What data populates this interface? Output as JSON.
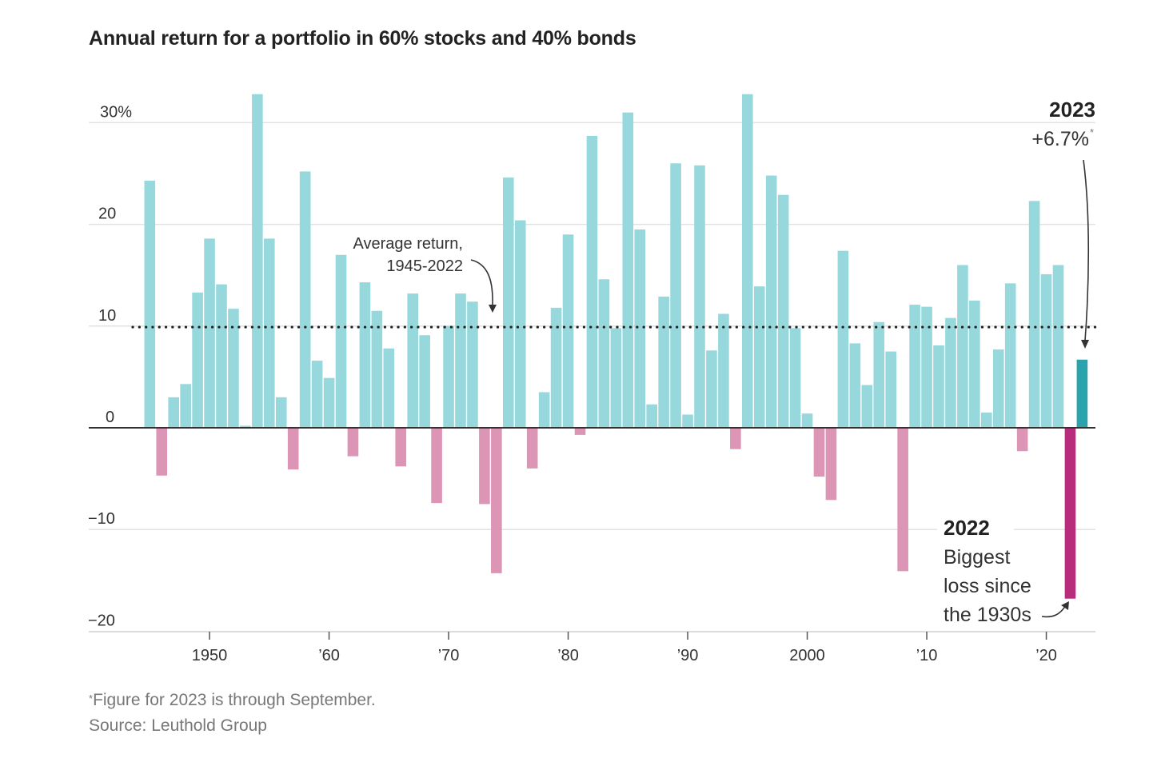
{
  "chart_data": {
    "type": "bar",
    "title": "Annual return for a portfolio in 60% stocks and 40% bonds",
    "xlabel": "",
    "ylabel": "",
    "ylim": [
      -20,
      33
    ],
    "grid": true,
    "y_ticks": [
      30,
      20,
      10,
      0,
      -10,
      -20
    ],
    "y_tick_labels": [
      "30%",
      "20",
      "10",
      "0",
      "−10",
      "−20"
    ],
    "x_ticks": [
      1950,
      1960,
      1970,
      1980,
      1990,
      2000,
      2010,
      2020
    ],
    "x_tick_labels": [
      "1950",
      "’60",
      "’70",
      "’80",
      "’90",
      "2000",
      "’10",
      "’20"
    ],
    "average_return": 9.9,
    "average_label": [
      "Average return,",
      "1945-2022"
    ],
    "x": [
      1945,
      1946,
      1947,
      1948,
      1949,
      1950,
      1951,
      1952,
      1953,
      1954,
      1955,
      1956,
      1957,
      1958,
      1959,
      1960,
      1961,
      1962,
      1963,
      1964,
      1965,
      1966,
      1967,
      1968,
      1969,
      1970,
      1971,
      1972,
      1973,
      1974,
      1975,
      1976,
      1977,
      1978,
      1979,
      1980,
      1981,
      1982,
      1983,
      1984,
      1985,
      1986,
      1987,
      1988,
      1989,
      1990,
      1991,
      1992,
      1993,
      1994,
      1995,
      1996,
      1997,
      1998,
      1999,
      2000,
      2001,
      2002,
      2003,
      2004,
      2005,
      2006,
      2007,
      2008,
      2009,
      2010,
      2011,
      2012,
      2013,
      2014,
      2015,
      2016,
      2017,
      2018,
      2019,
      2020,
      2021,
      2022,
      2023
    ],
    "values": [
      24.3,
      -4.7,
      3.0,
      4.3,
      13.3,
      18.6,
      14.1,
      11.7,
      0.2,
      32.8,
      18.6,
      3.0,
      -4.1,
      25.2,
      6.6,
      4.9,
      17.0,
      -2.8,
      14.3,
      11.5,
      7.8,
      -3.8,
      13.2,
      9.1,
      -7.4,
      10.0,
      13.2,
      12.4,
      -7.5,
      -14.3,
      24.6,
      20.4,
      -4.0,
      3.5,
      11.8,
      19.0,
      -0.7,
      28.7,
      14.6,
      9.8,
      31.0,
      19.5,
      2.3,
      12.9,
      26.0,
      1.3,
      25.8,
      7.6,
      11.2,
      -2.1,
      32.8,
      13.9,
      24.8,
      22.9,
      9.8,
      1.4,
      -4.8,
      -7.1,
      17.4,
      8.3,
      4.2,
      10.4,
      7.5,
      -14.1,
      12.1,
      11.9,
      8.1,
      10.8,
      16.0,
      12.5,
      1.5,
      7.7,
      14.2,
      -2.3,
      22.3,
      15.1,
      16.0,
      -16.8,
      6.7
    ],
    "colors": {
      "positive": "#97d8dc",
      "negative": "#dd95b5",
      "highlight_positive": "#2aa3ad",
      "highlight_negative": "#b82d7b",
      "axis": "#333333",
      "grid": "#e2e2e2"
    },
    "annotations": {
      "a2023": {
        "year": "2023",
        "value": "+6.7%",
        "star": "*"
      },
      "a2022": {
        "year": "2022",
        "lines": [
          "Biggest",
          "loss since",
          "the 1930s"
        ]
      }
    }
  },
  "footnotes": {
    "star": "*",
    "note": "Figure for 2023 is through September.",
    "source": "Source: Leuthold Group"
  }
}
